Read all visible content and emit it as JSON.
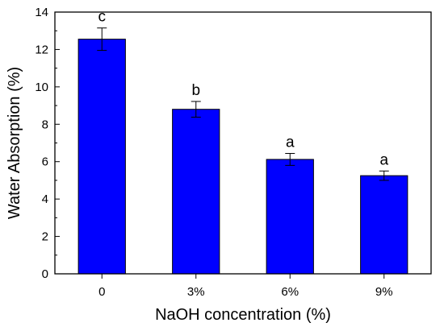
{
  "chart_data": {
    "type": "bar",
    "categories": [
      "0",
      "3%",
      "6%",
      "9%"
    ],
    "values": [
      12.55,
      8.8,
      6.12,
      5.25
    ],
    "errors": [
      0.6,
      0.42,
      0.32,
      0.25
    ],
    "significance": [
      "c",
      "b",
      "a",
      "a"
    ],
    "xlabel": "NaOH concentration (%)",
    "ylabel": "Water Absorption (%)",
    "ylim": [
      0,
      14
    ],
    "yticks": [
      0,
      2,
      4,
      6,
      8,
      10,
      12,
      14
    ],
    "grid": false,
    "bar_color": "#0000ff",
    "bar_edge_color": "#000000"
  }
}
